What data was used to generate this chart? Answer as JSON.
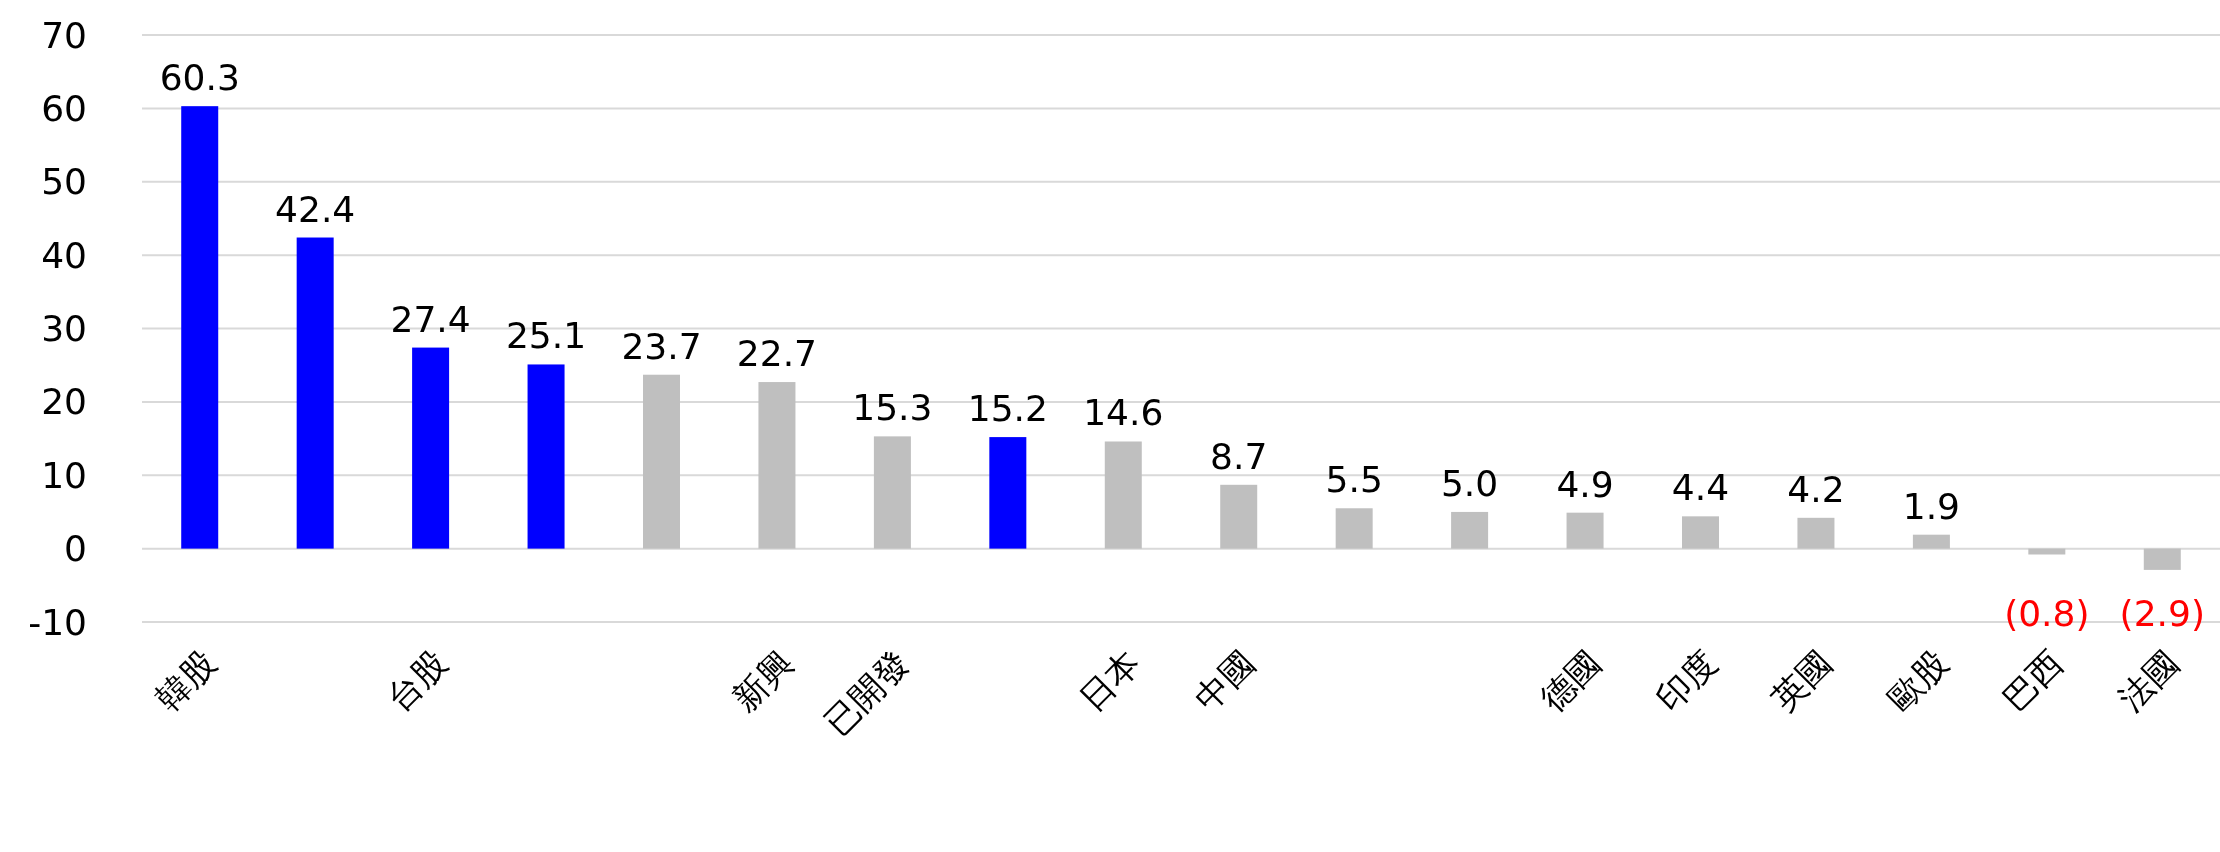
{
  "chart_data": {
    "type": "bar",
    "categories": [
      "韓股",
      null,
      "台股",
      null,
      null,
      "新興",
      "已開發",
      null,
      "日本",
      "中國",
      null,
      null,
      "德國",
      "印度",
      "英國",
      "歐股",
      "巴西",
      "法國"
    ],
    "values": [
      60.3,
      42.4,
      27.4,
      25.1,
      23.7,
      22.7,
      15.3,
      15.2,
      14.6,
      8.7,
      5.5,
      5.0,
      4.9,
      4.4,
      4.2,
      1.9,
      -0.8,
      -2.9
    ],
    "colors": [
      "#0000ff",
      "#0000ff",
      "#0000ff",
      "#0000ff",
      "#bfbfbf",
      "#bfbfbf",
      "#bfbfbf",
      "#0000ff",
      "#bfbfbf",
      "#bfbfbf",
      "#bfbfbf",
      "#bfbfbf",
      "#bfbfbf",
      "#bfbfbf",
      "#bfbfbf",
      "#bfbfbf",
      "#bfbfbf",
      "#bfbfbf"
    ],
    "value_labels": [
      "60.3",
      "42.4",
      "27.4",
      "25.1",
      "23.7",
      "22.7",
      "15.3",
      "15.2",
      "14.6",
      "8.7",
      "5.5",
      "5.0",
      "4.9",
      "4.4",
      "4.2",
      "1.9",
      "(0.8)",
      "(2.9)"
    ],
    "ylim": [
      -10,
      70
    ],
    "yticks": [
      -10,
      0,
      10,
      20,
      30,
      40,
      50,
      60,
      70
    ],
    "grid": "y"
  }
}
